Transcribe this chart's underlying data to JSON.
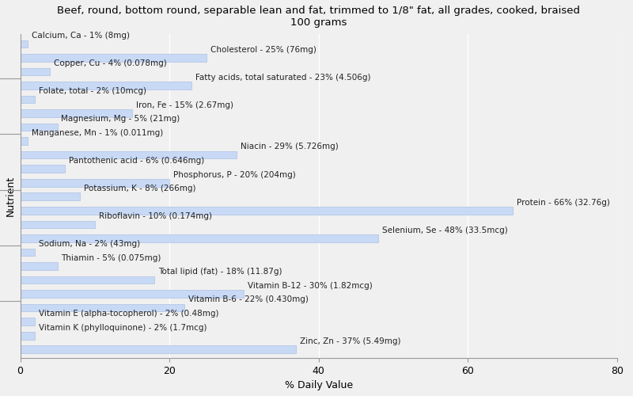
{
  "title": "Beef, round, bottom round, separable lean and fat, trimmed to 1/8\" fat, all grades, cooked, braised\n100 grams",
  "xlabel": "% Daily Value",
  "ylabel": "Nutrient",
  "xlim": [
    0,
    80
  ],
  "bar_color": "#c8d9f5",
  "edge_color": "#a0b8e0",
  "background_color": "#f0f0f0",
  "title_fontsize": 9.5,
  "label_fontsize": 7.5,
  "nutrients": [
    {
      "label": "Calcium, Ca - 1% (8mg)",
      "value": 1
    },
    {
      "label": "Cholesterol - 25% (76mg)",
      "value": 25
    },
    {
      "label": "Copper, Cu - 4% (0.078mg)",
      "value": 4
    },
    {
      "label": "Fatty acids, total saturated - 23% (4.506g)",
      "value": 23
    },
    {
      "label": "Folate, total - 2% (10mcg)",
      "value": 2
    },
    {
      "label": "Iron, Fe - 15% (2.67mg)",
      "value": 15
    },
    {
      "label": "Magnesium, Mg - 5% (21mg)",
      "value": 5
    },
    {
      "label": "Manganese, Mn - 1% (0.011mg)",
      "value": 1
    },
    {
      "label": "Niacin - 29% (5.726mg)",
      "value": 29
    },
    {
      "label": "Pantothenic acid - 6% (0.646mg)",
      "value": 6
    },
    {
      "label": "Phosphorus, P - 20% (204mg)",
      "value": 20
    },
    {
      "label": "Potassium, K - 8% (266mg)",
      "value": 8
    },
    {
      "label": "Protein - 66% (32.76g)",
      "value": 66
    },
    {
      "label": "Riboflavin - 10% (0.174mg)",
      "value": 10
    },
    {
      "label": "Selenium, Se - 48% (33.5mcg)",
      "value": 48
    },
    {
      "label": "Sodium, Na - 2% (43mg)",
      "value": 2
    },
    {
      "label": "Thiamin - 5% (0.075mg)",
      "value": 5
    },
    {
      "label": "Total lipid (fat) - 18% (11.87g)",
      "value": 18
    },
    {
      "label": "Vitamin B-12 - 30% (1.82mcg)",
      "value": 30
    },
    {
      "label": "Vitamin B-6 - 22% (0.430mg)",
      "value": 22
    },
    {
      "label": "Vitamin E (alpha-tocopherol) - 2% (0.48mg)",
      "value": 2
    },
    {
      "label": "Vitamin K (phylloquinone) - 2% (1.7mcg)",
      "value": 2
    },
    {
      "label": "Zinc, Zn - 37% (5.49mg)",
      "value": 37
    }
  ]
}
